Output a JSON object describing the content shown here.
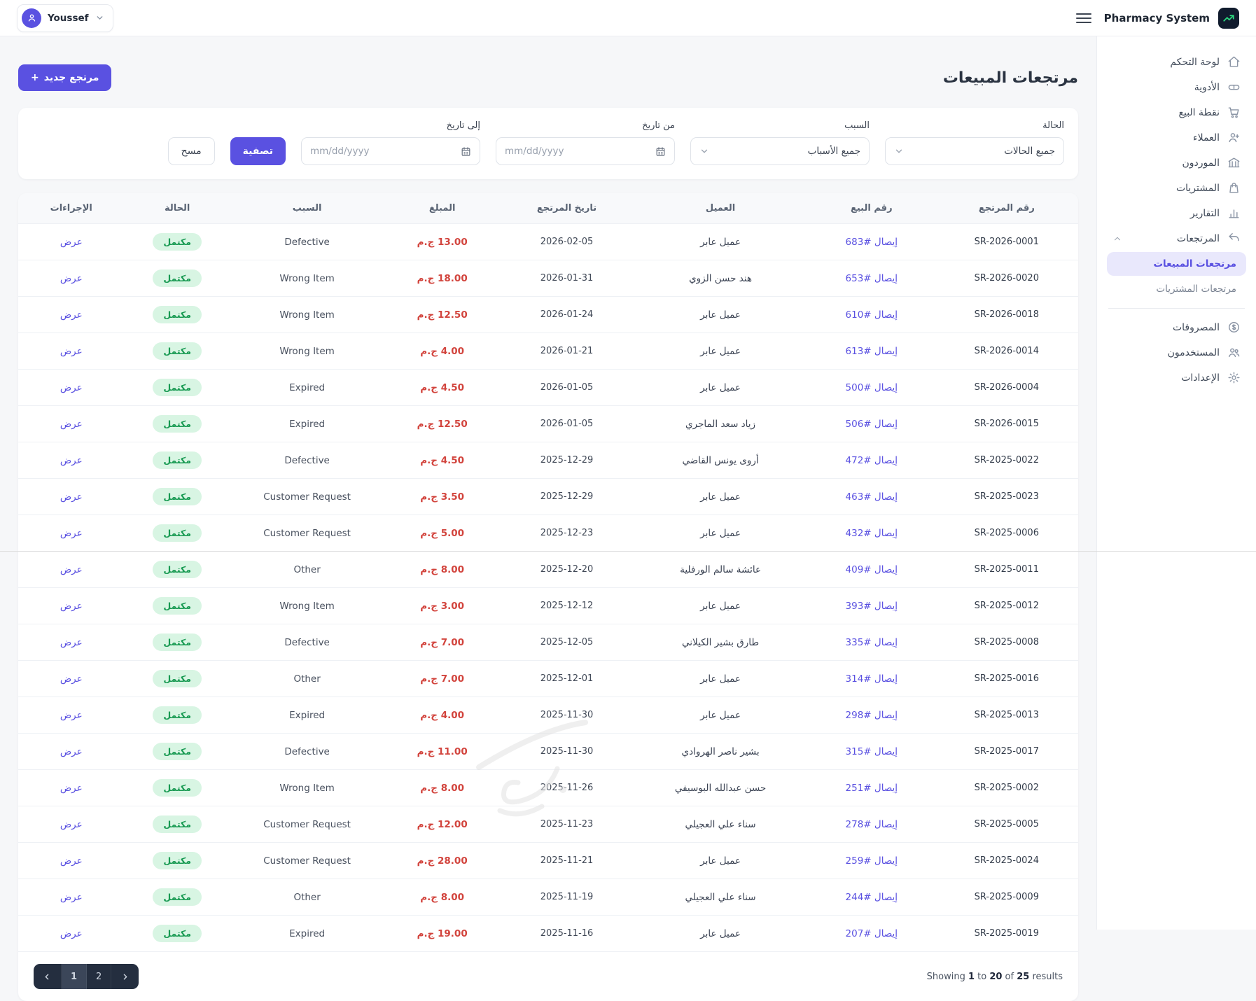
{
  "topbar": {
    "brand": "Pharmacy System",
    "user_name": "Youssef"
  },
  "sidebar": {
    "items": [
      {
        "key": "dashboard",
        "icon": "home",
        "label": "لوحة التحكم"
      },
      {
        "key": "medicines",
        "icon": "medicine",
        "label": "الأدوية"
      },
      {
        "key": "pos",
        "icon": "cart",
        "label": "نقطة البيع"
      },
      {
        "key": "customers",
        "icon": "customers",
        "label": "العملاء"
      },
      {
        "key": "suppliers",
        "icon": "bank",
        "label": "الموردون"
      },
      {
        "key": "purchases",
        "icon": "bag",
        "label": "المشتريات"
      },
      {
        "key": "reports",
        "icon": "chart",
        "label": "التقارير"
      },
      {
        "key": "returns",
        "icon": "return",
        "label": "المرتجعات",
        "expanded": true
      }
    ],
    "submenu": [
      {
        "key": "sales-returns",
        "label": "مرتجعات المبيعات",
        "active": true
      },
      {
        "key": "purchase-returns",
        "label": "مرتجعات المشتريات",
        "active": false
      }
    ],
    "items_bottom": [
      {
        "key": "expenses",
        "icon": "dollar",
        "label": "المصروفات"
      },
      {
        "key": "users",
        "icon": "users",
        "label": "المستخدمون"
      },
      {
        "key": "settings",
        "icon": "gear",
        "label": "الإعدادات"
      }
    ]
  },
  "page": {
    "title": "مرتجعات المبيعات",
    "new_return_label": "مرتجع جديد",
    "plus": "+"
  },
  "filters": {
    "status_label": "الحالة",
    "status_value": "جميع الحالات",
    "reason_label": "السبب",
    "reason_value": "جميع الأسباب",
    "from_label": "من تاريخ",
    "from_placeholder": "mm/dd/yyyy",
    "to_label": "إلى تاريخ",
    "to_placeholder": "mm/dd/yyyy",
    "apply_label": "تصفية",
    "clear_label": "مسح"
  },
  "table": {
    "headers": [
      "رقم المرتجع",
      "رقم البيع",
      "العميل",
      "تاريخ المرتجع",
      "المبلغ",
      "السبب",
      "الحالة",
      "الإجراءات"
    ],
    "rows": [
      {
        "return_no": "SR-2026-0001",
        "sale_no": "إيصال #683",
        "customer": "عميل عابر",
        "date": "2026-02-05",
        "amount": "13.00 ج.م",
        "reason": "Defective",
        "status": "مكتمل",
        "action": "عرض"
      },
      {
        "return_no": "SR-2026-0020",
        "sale_no": "إيصال #653",
        "customer": "هند حسن الزوي",
        "date": "2026-01-31",
        "amount": "18.00 ج.م",
        "reason": "Wrong Item",
        "status": "مكتمل",
        "action": "عرض"
      },
      {
        "return_no": "SR-2026-0018",
        "sale_no": "إيصال #610",
        "customer": "عميل عابر",
        "date": "2026-01-24",
        "amount": "12.50 ج.م",
        "reason": "Wrong Item",
        "status": "مكتمل",
        "action": "عرض"
      },
      {
        "return_no": "SR-2026-0014",
        "sale_no": "إيصال #613",
        "customer": "عميل عابر",
        "date": "2026-01-21",
        "amount": "4.00 ج.م",
        "reason": "Wrong Item",
        "status": "مكتمل",
        "action": "عرض"
      },
      {
        "return_no": "SR-2026-0004",
        "sale_no": "إيصال #500",
        "customer": "عميل عابر",
        "date": "2026-01-05",
        "amount": "4.50 ج.م",
        "reason": "Expired",
        "status": "مكتمل",
        "action": "عرض"
      },
      {
        "return_no": "SR-2026-0015",
        "sale_no": "إيصال #506",
        "customer": "زياد سعد الماجري",
        "date": "2026-01-05",
        "amount": "12.50 ج.م",
        "reason": "Expired",
        "status": "مكتمل",
        "action": "عرض"
      },
      {
        "return_no": "SR-2025-0022",
        "sale_no": "إيصال #472",
        "customer": "أروى يونس القاضي",
        "date": "2025-12-29",
        "amount": "4.50 ج.م",
        "reason": "Defective",
        "status": "مكتمل",
        "action": "عرض"
      },
      {
        "return_no": "SR-2025-0023",
        "sale_no": "إيصال #463",
        "customer": "عميل عابر",
        "date": "2025-12-29",
        "amount": "3.50 ج.م",
        "reason": "Customer Request",
        "status": "مكتمل",
        "action": "عرض"
      },
      {
        "return_no": "SR-2025-0006",
        "sale_no": "إيصال #432",
        "customer": "عميل عابر",
        "date": "2025-12-23",
        "amount": "5.00 ج.م",
        "reason": "Customer Request",
        "status": "مكتمل",
        "action": "عرض"
      },
      {
        "return_no": "SR-2025-0011",
        "sale_no": "إيصال #409",
        "customer": "عائشة سالم الورفلية",
        "date": "2025-12-20",
        "amount": "8.00 ج.م",
        "reason": "Other",
        "status": "مكتمل",
        "action": "عرض"
      },
      {
        "return_no": "SR-2025-0012",
        "sale_no": "إيصال #393",
        "customer": "عميل عابر",
        "date": "2025-12-12",
        "amount": "3.00 ج.م",
        "reason": "Wrong Item",
        "status": "مكتمل",
        "action": "عرض"
      },
      {
        "return_no": "SR-2025-0008",
        "sale_no": "إيصال #335",
        "customer": "طارق بشير الكيلاني",
        "date": "2025-12-05",
        "amount": "7.00 ج.م",
        "reason": "Defective",
        "status": "مكتمل",
        "action": "عرض"
      },
      {
        "return_no": "SR-2025-0016",
        "sale_no": "إيصال #314",
        "customer": "عميل عابر",
        "date": "2025-12-01",
        "amount": "7.00 ج.م",
        "reason": "Other",
        "status": "مكتمل",
        "action": "عرض"
      },
      {
        "return_no": "SR-2025-0013",
        "sale_no": "إيصال #298",
        "customer": "عميل عابر",
        "date": "2025-11-30",
        "amount": "4.00 ج.م",
        "reason": "Expired",
        "status": "مكتمل",
        "action": "عرض"
      },
      {
        "return_no": "SR-2025-0017",
        "sale_no": "إيصال #315",
        "customer": "بشير ناصر الهروادي",
        "date": "2025-11-30",
        "amount": "11.00 ج.م",
        "reason": "Defective",
        "status": "مكتمل",
        "action": "عرض"
      },
      {
        "return_no": "SR-2025-0002",
        "sale_no": "إيصال #251",
        "customer": "حسن عبدالله البوسيفي",
        "date": "2025-11-26",
        "amount": "8.00 ج.م",
        "reason": "Wrong Item",
        "status": "مكتمل",
        "action": "عرض"
      },
      {
        "return_no": "SR-2025-0005",
        "sale_no": "إيصال #278",
        "customer": "سناء علي العجيلي",
        "date": "2025-11-23",
        "amount": "12.00 ج.م",
        "reason": "Customer Request",
        "status": "مكتمل",
        "action": "عرض"
      },
      {
        "return_no": "SR-2025-0024",
        "sale_no": "إيصال #259",
        "customer": "عميل عابر",
        "date": "2025-11-21",
        "amount": "28.00 ج.م",
        "reason": "Customer Request",
        "status": "مكتمل",
        "action": "عرض"
      },
      {
        "return_no": "SR-2025-0009",
        "sale_no": "إيصال #244",
        "customer": "سناء علي العجيلي",
        "date": "2025-11-19",
        "amount": "8.00 ج.م",
        "reason": "Other",
        "status": "مكتمل",
        "action": "عرض"
      },
      {
        "return_no": "SR-2025-0019",
        "sale_no": "إيصال #207",
        "customer": "عميل عابر",
        "date": "2025-11-16",
        "amount": "19.00 ج.م",
        "reason": "Expired",
        "status": "مكتمل",
        "action": "عرض"
      }
    ]
  },
  "pagination": {
    "pages": [
      "1",
      "2"
    ],
    "active_page": "1",
    "summary": [
      {
        "t": "Showing ",
        "b": false
      },
      {
        "t": "1",
        "b": true
      },
      {
        "t": " to ",
        "b": false
      },
      {
        "t": "20",
        "b": true
      },
      {
        "t": " of ",
        "b": false
      },
      {
        "t": "25",
        "b": true
      },
      {
        "t": " results",
        "b": false
      }
    ]
  },
  "colors": {
    "accent": "#5a51e1",
    "danger": "#d2443d",
    "success_bg": "#d8f5e3",
    "success_text": "#189a52",
    "logo_bg": "#101b2d",
    "logo_glyph": "#2bd97e",
    "pager_bg": "#242e3f",
    "pager_active": "#3b4659"
  }
}
